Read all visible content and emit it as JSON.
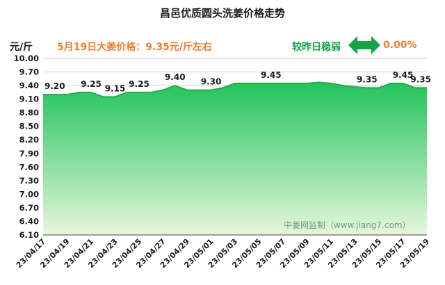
{
  "header": {
    "title": "昌邑优质圆头洗姜价格走势",
    "unit": "元/斤",
    "price_note": "5月19日大姜价格：9.35元/斤左右",
    "compare_label": "较昨日稳弱",
    "compare_value": "0.00%",
    "compare_icon": "double-arrow-icon"
  },
  "colors": {
    "accent_orange": "#ee7d2f",
    "arrow_green": "#17a34a",
    "fill_top": "#22c35a",
    "fill_bottom": "#e7f6dd",
    "line": "#2aa84e",
    "grid": "#cfcfcf"
  },
  "chart_data": {
    "type": "area",
    "ylim": [
      6.1,
      10.0
    ],
    "yticks": [
      "10.00",
      "9.70",
      "9.40",
      "9.10",
      "8.80",
      "8.50",
      "8.20",
      "7.90",
      "7.60",
      "7.30",
      "7.00",
      "6.70",
      "6.40",
      "6.10"
    ],
    "x": [
      "23/04/17",
      "23/04/18",
      "23/04/19",
      "23/04/20",
      "23/04/21",
      "23/04/22",
      "23/04/23",
      "23/04/24",
      "23/04/25",
      "23/04/26",
      "23/04/27",
      "23/04/28",
      "23/04/29",
      "23/04/30",
      "23/05/01",
      "23/05/02",
      "23/05/03",
      "23/05/04",
      "23/05/05",
      "23/05/06",
      "23/05/07",
      "23/05/08",
      "23/05/09",
      "23/05/10",
      "23/05/11",
      "23/05/12",
      "23/05/13",
      "23/05/14",
      "23/05/15",
      "23/05/16",
      "23/05/17",
      "23/05/18",
      "23/05/19"
    ],
    "xtick_labels": [
      "23/04/17",
      "23/04/19",
      "23/04/21",
      "23/04/23",
      "23/04/25",
      "23/04/27",
      "23/04/29",
      "23/05/01",
      "23/05/03",
      "23/05/05",
      "23/05/07",
      "23/05/09",
      "23/05/11",
      "23/05/13",
      "23/05/15",
      "23/05/17",
      "23/05/19"
    ],
    "values": [
      9.2,
      9.2,
      9.2,
      9.25,
      9.25,
      9.15,
      9.15,
      9.25,
      9.25,
      9.25,
      9.3,
      9.4,
      9.3,
      9.3,
      9.3,
      9.35,
      9.45,
      9.45,
      9.45,
      9.45,
      9.45,
      9.45,
      9.45,
      9.47,
      9.45,
      9.4,
      9.37,
      9.35,
      9.35,
      9.45,
      9.45,
      9.35,
      9.35
    ],
    "data_labels": [
      {
        "x": "23/04/17",
        "text": "9.20"
      },
      {
        "x": "23/04/21",
        "text": "9.25"
      },
      {
        "x": "23/04/23",
        "text": "9.15"
      },
      {
        "x": "23/04/25",
        "text": "9.25"
      },
      {
        "x": "23/04/28",
        "text": "9.40"
      },
      {
        "x": "23/05/01",
        "text": "9.30"
      },
      {
        "x": "23/05/06",
        "text": "9.45"
      },
      {
        "x": "23/05/14",
        "text": "9.35"
      },
      {
        "x": "23/05/17",
        "text": "9.45"
      },
      {
        "x": "23/05/19",
        "text": "9.35"
      }
    ],
    "watermark": "中姜网监制（www.jiang7.com）",
    "grid": true
  }
}
